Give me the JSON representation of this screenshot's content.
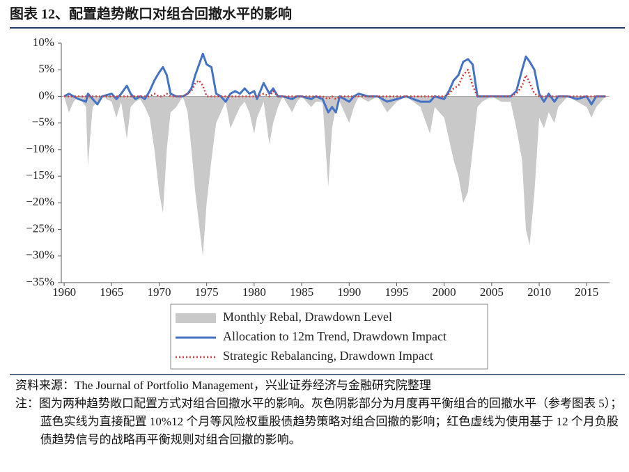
{
  "chart_data": {
    "type": "line",
    "title": "图表 12、配置趋势敞口对组合回撤水平的影响",
    "x": [
      1960,
      1960.5,
      1961,
      1961.5,
      1962.3,
      1962.5,
      1963,
      1963.5,
      1964,
      1965,
      1965.5,
      1966,
      1966.6,
      1967,
      1967.5,
      1968,
      1968.5,
      1969,
      1969.5,
      1970,
      1970.4,
      1970.8,
      1971.2,
      1971.8,
      1972.5,
      1973,
      1973.4,
      1973.8,
      1974.2,
      1974.6,
      1975,
      1975.5,
      1976,
      1976.5,
      1977,
      1977.5,
      1978,
      1978.5,
      1979,
      1979.5,
      1980,
      1980.3,
      1981,
      1981.6,
      1982,
      1982.5,
      1983,
      1984,
      1984.5,
      1985,
      1986,
      1986.5,
      1987.2,
      1987.8,
      1988.2,
      1988.6,
      1989,
      1990,
      1990.5,
      1991,
      1992,
      1993,
      1994,
      1995,
      1996,
      1997.5,
      1998.5,
      1999,
      2000,
      2000.5,
      2001,
      2001.5,
      2002,
      2002.5,
      2003,
      2003.5,
      2004,
      2005,
      2006,
      2007,
      2007.6,
      2008.2,
      2008.6,
      2009,
      2009.5,
      2010,
      2010.5,
      2011,
      2011.6,
      2012,
      2013,
      2014,
      2015,
      2015.5,
      2016,
      2017
    ],
    "series": [
      {
        "name": "Monthly Rebal, Drawdown Level",
        "color": "#c9c9c9",
        "style": "area",
        "values": [
          0,
          -3,
          -1,
          0,
          -2,
          -13,
          -2,
          -1,
          0,
          -1,
          -4,
          -1,
          -8,
          -2,
          -1,
          -0.5,
          -2,
          -4,
          -10,
          -18,
          -22,
          -10,
          -3,
          -2,
          0,
          -3,
          -10,
          -18,
          -24,
          -30,
          -20,
          -12,
          -5,
          -3,
          -1,
          -6,
          -4,
          -2,
          -1,
          -3,
          -7,
          -4,
          -1,
          -9,
          -5,
          -2,
          0,
          -3,
          -1,
          0,
          -2,
          -1,
          -1,
          -17,
          -6,
          -2,
          -1,
          -5,
          -2,
          0,
          -1,
          0,
          -3,
          -1,
          0,
          -2,
          -7,
          -2,
          -4,
          -8,
          -12,
          -15,
          -20,
          -18,
          -10,
          -2,
          -1,
          0,
          -1,
          -1,
          -6,
          -12,
          -25,
          -28,
          -18,
          -4,
          -6,
          -3,
          -5,
          -2,
          0,
          -1,
          -2,
          -4,
          -2,
          0
        ]
      },
      {
        "name": "Allocation to 12m Trend, Drawdown Impact",
        "color": "#4472c4",
        "style": "solid",
        "values": [
          0,
          0.5,
          0,
          -0.5,
          -1,
          0.5,
          -0.5,
          -1.5,
          0,
          0.5,
          -0.5,
          0.5,
          2,
          0.5,
          -0.5,
          0,
          -0.5,
          1,
          3,
          4.5,
          5.5,
          4,
          0.5,
          0,
          0,
          0.5,
          1.5,
          4,
          6,
          8,
          6,
          5.5,
          0.5,
          0,
          -1,
          0.5,
          1,
          0.5,
          1.5,
          0.5,
          1,
          -0.5,
          2.5,
          0.5,
          1.5,
          0,
          0,
          -0.5,
          0,
          0,
          -0.5,
          0,
          -0.5,
          -3,
          -2,
          -3,
          0,
          -1,
          0,
          0.5,
          0,
          0,
          -1,
          -0.5,
          0,
          -1,
          -1,
          0,
          -0.5,
          1,
          3,
          4,
          6.5,
          7,
          6,
          0,
          0,
          0,
          0,
          0,
          1,
          5,
          7.5,
          6.5,
          5,
          0.5,
          -1,
          0.5,
          -1,
          0,
          0,
          -0.5,
          0,
          -1.5,
          0,
          0
        ]
      },
      {
        "name": "Strategic Rebalancing, Drawdown Impact",
        "color": "#d23a3a",
        "style": "dotted",
        "values": [
          0,
          0,
          0,
          0,
          0,
          0,
          0,
          0,
          0,
          0,
          0,
          0,
          0,
          0,
          0,
          0,
          0,
          0,
          0.5,
          0,
          0,
          0.5,
          0,
          0,
          0,
          0.5,
          1,
          2.5,
          3,
          2,
          0,
          0,
          0,
          0,
          0,
          0,
          0,
          0,
          0,
          0,
          0,
          0,
          0.5,
          0,
          1,
          0,
          0,
          0,
          0,
          0,
          0,
          0,
          0,
          -0.5,
          0,
          -0.5,
          0,
          0,
          0,
          0,
          0,
          0,
          0,
          0,
          0,
          0,
          0,
          0,
          0,
          0.5,
          1.5,
          2,
          4,
          5,
          2,
          0,
          0,
          0,
          0,
          0,
          0.5,
          2,
          4,
          2.5,
          0.5,
          0,
          0,
          0,
          0,
          0,
          0,
          0,
          0,
          0,
          0,
          0
        ]
      }
    ],
    "xlim": [
      1959.7,
      2017.4
    ],
    "xticks": [
      1960,
      1965,
      1970,
      1975,
      1980,
      1985,
      1990,
      1995,
      2000,
      2005,
      2010,
      2015
    ],
    "ylim": [
      -35,
      10
    ],
    "yticks": [
      {
        "value": 10,
        "label": "10%"
      },
      {
        "value": 5,
        "label": "5%"
      },
      {
        "value": 0,
        "label": "0%"
      },
      {
        "value": -5,
        "label": "−5%"
      },
      {
        "value": -10,
        "label": "−10%"
      },
      {
        "value": -15,
        "label": "−15%"
      },
      {
        "value": -20,
        "label": "−20%"
      },
      {
        "value": -25,
        "label": "−25%"
      },
      {
        "value": -30,
        "label": "−30%"
      },
      {
        "value": -35,
        "label": "−35%"
      }
    ]
  },
  "notes": {
    "source": "资料来源：The Journal of Portfolio Management，兴业证券经济与金融研究院整理",
    "note": "注：图为两种趋势敞口配置方式对组合回撤水平的影响。灰色阴影部分为月度再平衡组合的回撤水平（参考图表 5）；蓝色实线为直接配置 10%12 个月等风险权重股债趋势策略对组合回撤的影响；红色虚线为使用基于 12 个月负股债趋势信号的战略再平衡规则对组合回撤的影响。"
  }
}
